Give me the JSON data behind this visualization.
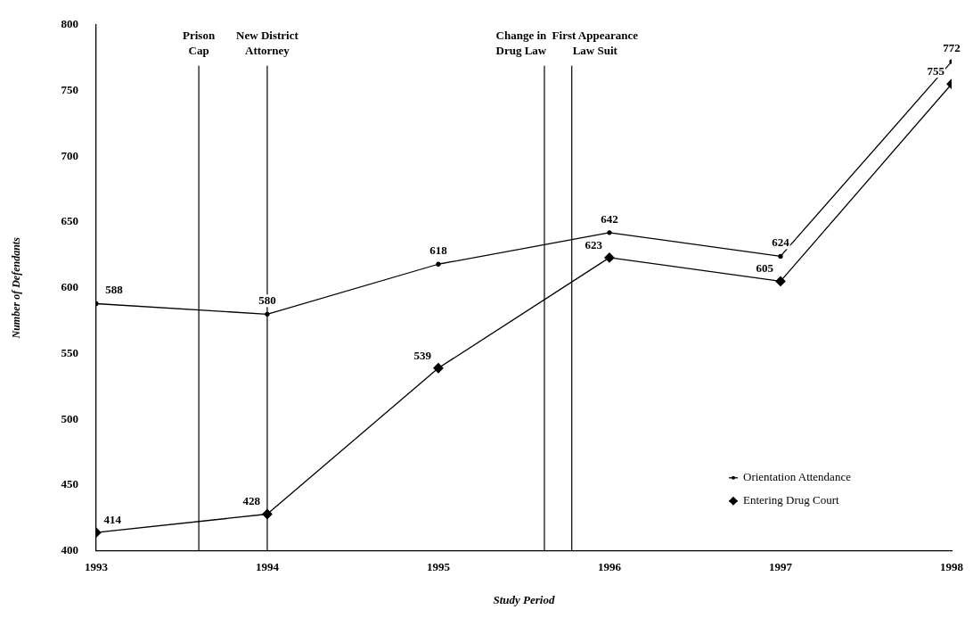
{
  "chart_data": {
    "type": "line",
    "xlabel": "Study Period",
    "ylabel": "Number of Defendants",
    "x": [
      1993,
      1994,
      1995,
      1996,
      1997,
      1998
    ],
    "series": [
      {
        "name": "Orientation Attendance",
        "color": "#000000",
        "marker": "circle",
        "values": [
          588,
          580,
          618,
          642,
          624,
          772
        ]
      },
      {
        "name": "Entering Drug Court",
        "color": "#000000",
        "marker": "diamond",
        "values": [
          414,
          428,
          539,
          623,
          605,
          755
        ]
      }
    ],
    "xlim": [
      1993,
      1998
    ],
    "xticks": [
      1993,
      1994,
      1995,
      1996,
      1997,
      1998
    ],
    "ylim": [
      400,
      800
    ],
    "yticks": [
      400,
      450,
      500,
      550,
      600,
      650,
      700,
      750,
      800
    ],
    "ref_lines": [
      {
        "axis": "x",
        "value": 1993.6,
        "label": "Prison Cap",
        "color": "#000000"
      },
      {
        "axis": "x",
        "value": 1994,
        "label": "New District Attorney",
        "color": "#000000"
      },
      {
        "axis": "x",
        "value": 1995.62,
        "label": "Change in Drug Law",
        "color": "#000000"
      },
      {
        "axis": "x",
        "value": 1995.78,
        "label": "First Appearance Law Suit",
        "color": "#000000"
      }
    ],
    "data_labels": true,
    "grid": false,
    "legend": "bottom right",
    "line_style": "solid"
  }
}
